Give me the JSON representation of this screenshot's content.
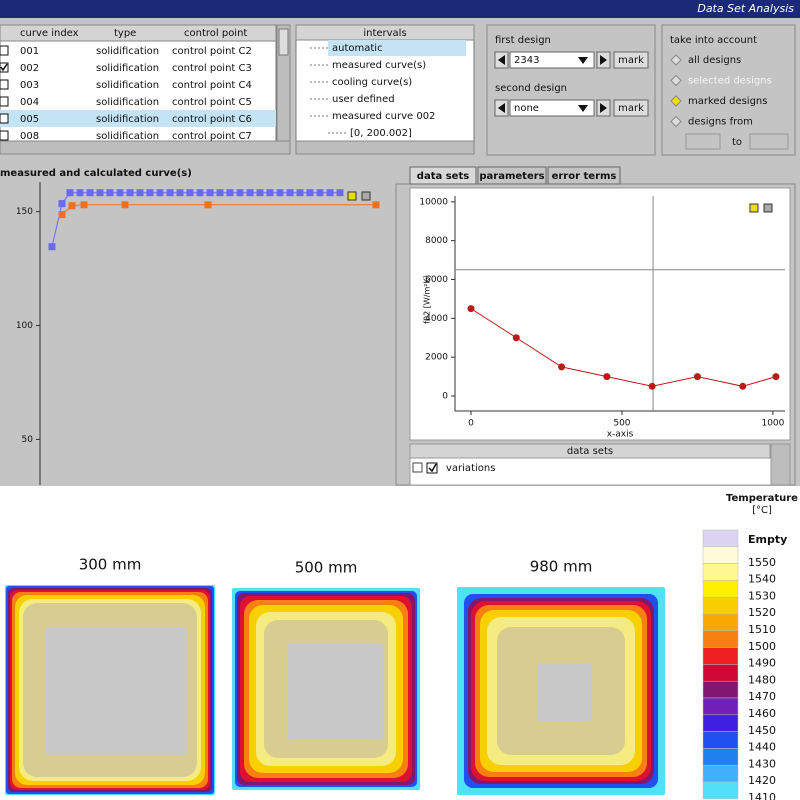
{
  "window": {
    "title": "Data Set Analysis"
  },
  "curve_table": {
    "columns": [
      "curve index",
      "type",
      "control point"
    ],
    "rows": [
      [
        "001",
        "solidification",
        "control point C2"
      ],
      [
        "002",
        "solidification",
        "control point C3"
      ],
      [
        "003",
        "solidification",
        "control point C4"
      ],
      [
        "004",
        "solidification",
        "control point C5"
      ],
      [
        "005",
        "solidification",
        "control point C6"
      ],
      [
        "008",
        "solidification",
        "control point C7"
      ]
    ],
    "checked": [
      false,
      true,
      false,
      false,
      false,
      false
    ],
    "selected": 4
  },
  "intervals": {
    "header": "intervals",
    "items": [
      "automatic",
      "measured curve(s)",
      "cooling curve(s)",
      "user defined",
      "measured curve 002",
      "[0, 200.002]"
    ],
    "selected": 0
  },
  "design": {
    "first_label": "first design",
    "first_value": "2343",
    "second_label": "second design",
    "second_value": "none",
    "button": "mark"
  },
  "take_into_account": {
    "title": "take into account",
    "options": [
      "all designs",
      "selected designs",
      "marked designs",
      "designs from"
    ],
    "selected": 2,
    "disabled": [
      1
    ],
    "to_label": "to"
  },
  "tabs": {
    "items": [
      "data sets",
      "parameters",
      "error terms"
    ],
    "active": 0
  },
  "data_sets_panel": {
    "header": "data sets",
    "items": [
      "variations"
    ]
  },
  "chart_data": [
    {
      "type": "line",
      "title": "measured and calculated curve(s)",
      "marker": "square",
      "xlim": [
        0,
        340
      ],
      "ylim": [
        30,
        163
      ],
      "yticks": [
        50,
        100,
        150
      ],
      "series": [
        {
          "color": "#6a6af0",
          "x": [
            12,
            22,
            30,
            40,
            50,
            60,
            70,
            80,
            90,
            100,
            110,
            120,
            130,
            140,
            150,
            160,
            170,
            180,
            190,
            200,
            210,
            220,
            230,
            240,
            250,
            260,
            270,
            280,
            290,
            300
          ],
          "values": [
            134.6,
            153.5,
            158.3,
            158.3,
            158.3,
            158.3,
            158.3,
            158.3,
            158.3,
            158.3,
            158.3,
            158.3,
            158.3,
            158.3,
            158.3,
            158.3,
            158.3,
            158.3,
            158.3,
            158.3,
            158.3,
            158.3,
            158.3,
            158.3,
            158.3,
            158.3,
            158.3,
            158.3,
            158.3,
            158.3
          ]
        },
        {
          "color": "#f07020",
          "x": [
            22,
            32,
            44,
            85,
            168,
            336
          ],
          "values": [
            148.7,
            152.6,
            153,
            153,
            153,
            153
          ]
        }
      ]
    },
    {
      "type": "line",
      "marker": "circle",
      "y_label": "f02 [W/m²K]",
      "x_label": "x-axis",
      "xlim": [
        -53,
        1040
      ],
      "ylim": [
        -360,
        10300
      ],
      "xticks": [
        0,
        500,
        1000
      ],
      "yticks": [
        0,
        2000,
        4000,
        6000,
        8000,
        10000
      ],
      "crosshair": {
        "x": 603,
        "y": 6500
      },
      "series": [
        {
          "color": "#c01818",
          "x": [
            0,
            150,
            300,
            450,
            600,
            750,
            900,
            1010
          ],
          "values": [
            4500,
            3000,
            1500,
            1000,
            500,
            1000,
            500,
            1000
          ]
        }
      ]
    }
  ],
  "heat_maps": [
    {
      "label": "300 mm"
    },
    {
      "label": "500 mm"
    },
    {
      "label": "980 mm"
    }
  ],
  "temperature_legend": {
    "title": "Temperature",
    "unit": "[°C]",
    "items": [
      {
        "label": "Empty",
        "color": "#dcd4f0"
      },
      {
        "label": 1550,
        "color": "#fffbd8"
      },
      {
        "label": 1540,
        "color": "#fff890"
      },
      {
        "label": 1530,
        "color": "#fff000"
      },
      {
        "label": 1520,
        "color": "#f8d000"
      },
      {
        "label": 1510,
        "color": "#f8a800"
      },
      {
        "label": 1500,
        "color": "#f88010"
      },
      {
        "label": 1490,
        "color": "#f02020"
      },
      {
        "label": 1480,
        "color": "#d00838"
      },
      {
        "label": 1470,
        "color": "#801870"
      },
      {
        "label": 1460,
        "color": "#7020b8"
      },
      {
        "label": 1450,
        "color": "#4020e0"
      },
      {
        "label": 1440,
        "color": "#2050f0"
      },
      {
        "label": 1430,
        "color": "#2080f0"
      },
      {
        "label": 1420,
        "color": "#40b0f8"
      },
      {
        "label": 1410,
        "color": "#50e0f8"
      }
    ]
  }
}
